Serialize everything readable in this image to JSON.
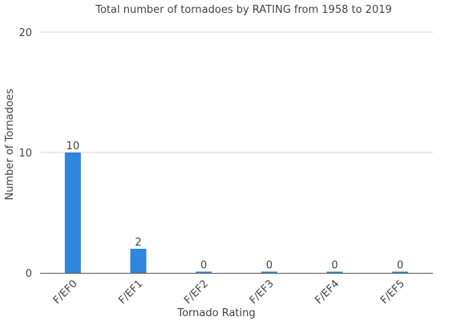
{
  "chart_data": {
    "type": "bar",
    "title": "Total number of tornadoes by RATING from 1958 to 2019",
    "xlabel": "Tornado Rating",
    "ylabel": "Number of Tornadoes",
    "categories": [
      "F/EF0",
      "F/EF1",
      "F/EF2",
      "F/EF3",
      "F/EF4",
      "F/EF5"
    ],
    "values": [
      10,
      2,
      0,
      0,
      0,
      0
    ],
    "ylim": [
      0,
      20
    ],
    "yticks": [
      0,
      10,
      20
    ],
    "grid": true,
    "bar_color": "#2e86de"
  }
}
